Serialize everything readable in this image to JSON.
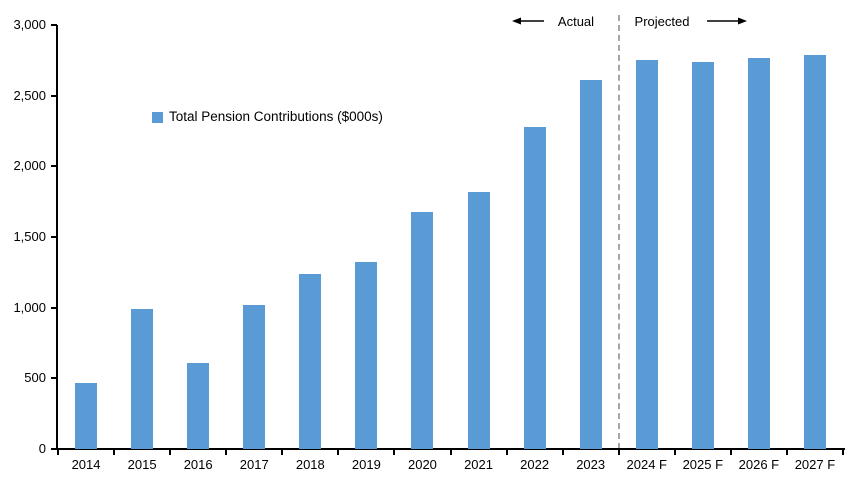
{
  "chart_data": {
    "type": "bar",
    "title": "",
    "legend": "Total Pension Contributions ($000s)",
    "categories": [
      "2014",
      "2015",
      "2016",
      "2017",
      "2018",
      "2019",
      "2020",
      "2021",
      "2022",
      "2023",
      "2024 F",
      "2025 F",
      "2026 F",
      "2027 F"
    ],
    "values": [
      470,
      990,
      610,
      1020,
      1240,
      1320,
      1680,
      1820,
      2280,
      2610,
      2750,
      2740,
      2765,
      2790
    ],
    "ylim": [
      0,
      3000
    ],
    "y_ticks": [
      {
        "value": 0,
        "label": "0"
      },
      {
        "value": 500,
        "label": "500"
      },
      {
        "value": 1000,
        "label": "1,000"
      },
      {
        "value": 1500,
        "label": "1,500"
      },
      {
        "value": 2000,
        "label": "2,000"
      },
      {
        "value": 2500,
        "label": "2,500"
      },
      {
        "value": 3000,
        "label": "3,000"
      }
    ],
    "grid": false,
    "legend_position": "inside-upper-left",
    "bar_color": "#5B9BD5",
    "axis_color": "#000000",
    "separator": {
      "after_category": "2023",
      "left_label": "Actual",
      "right_label": "Projected",
      "line_color": "#A6A6A6"
    }
  }
}
